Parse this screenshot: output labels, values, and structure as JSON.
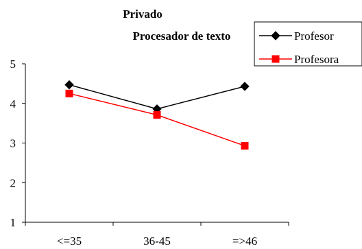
{
  "chart_data": {
    "type": "line",
    "title": [
      "Privado",
      "Procesador de texto"
    ],
    "categories": [
      "<=35",
      "36-45",
      "=>46"
    ],
    "ylim": [
      1,
      5
    ],
    "yticks": [
      "1",
      "2",
      "3",
      "4",
      "5"
    ],
    "grid": false,
    "legend_position": "top-right",
    "series": [
      {
        "name": "Profesor",
        "values": [
          4.47,
          3.86,
          4.43
        ],
        "color": "#000000",
        "marker": "diamond"
      },
      {
        "name": "Profesora",
        "values": [
          4.25,
          3.71,
          2.93
        ],
        "color": "#ff0000",
        "marker": "square"
      }
    ]
  }
}
